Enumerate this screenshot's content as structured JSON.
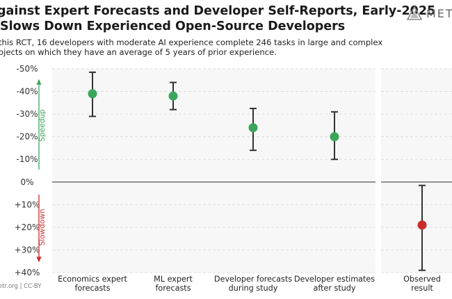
{
  "header": {
    "title_line1": "gainst Expert Forecasts and Developer Self-Reports, Early-2025",
    "title_line2": "Slows Down Experienced Open-Source Developers",
    "subtitle_line1": "this RCT, 16 developers with moderate AI experience complete 246 tasks in large and complex",
    "subtitle_line2": "ojects on which they have an average of 5 years of prior experience.",
    "logo_text": "METR"
  },
  "footer": {
    "source": "etr.org  |  CC-BY"
  },
  "colors": {
    "speedup": "#3aa65a",
    "slowdown": "#cc2b2b",
    "whisker": "#333333",
    "panel_bg": "#f7f7f7",
    "grid": "#dddddd",
    "zero_line": "#555555"
  },
  "chart_data": {
    "type": "scatter",
    "subtype": "point-with-error-bars",
    "y_axis": {
      "range": [
        40,
        -50
      ],
      "inverted": true,
      "ticks": [
        -50,
        -40,
        -30,
        -20,
        -10,
        0,
        10,
        20,
        30,
        40
      ],
      "tick_labels": [
        "-50%",
        "-40%",
        "-30%",
        "-20%",
        "-10%",
        "0%",
        "+10%",
        "+20%",
        "+30%",
        "+40%"
      ],
      "speedup_label": "Speedup",
      "slowdown_label": "Slowdown"
    },
    "groups": [
      {
        "panel": "forecasts",
        "points": [
          {
            "label_line1": "Economics expert",
            "label_line2": "forecasts",
            "value": -39,
            "ci_low": -48.5,
            "ci_high": -29,
            "color": "#3aa65a"
          },
          {
            "label_line1": "ML expert",
            "label_line2": "forecasts",
            "value": -38,
            "ci_low": -44,
            "ci_high": -32,
            "color": "#3aa65a"
          },
          {
            "label_line1": "Developer forecasts",
            "label_line2": "during study",
            "value": -24,
            "ci_low": -32.5,
            "ci_high": -14,
            "color": "#3aa65a"
          },
          {
            "label_line1": "Developer estimates",
            "label_line2": "after study",
            "value": -20,
            "ci_low": -31,
            "ci_high": -10,
            "color": "#3aa65a"
          }
        ]
      },
      {
        "panel": "observed",
        "points": [
          {
            "label_line1": "Observed",
            "label_line2": "result",
            "value": 19,
            "ci_low": 1.5,
            "ci_high": 39,
            "color": "#cc2b2b"
          }
        ]
      }
    ]
  }
}
